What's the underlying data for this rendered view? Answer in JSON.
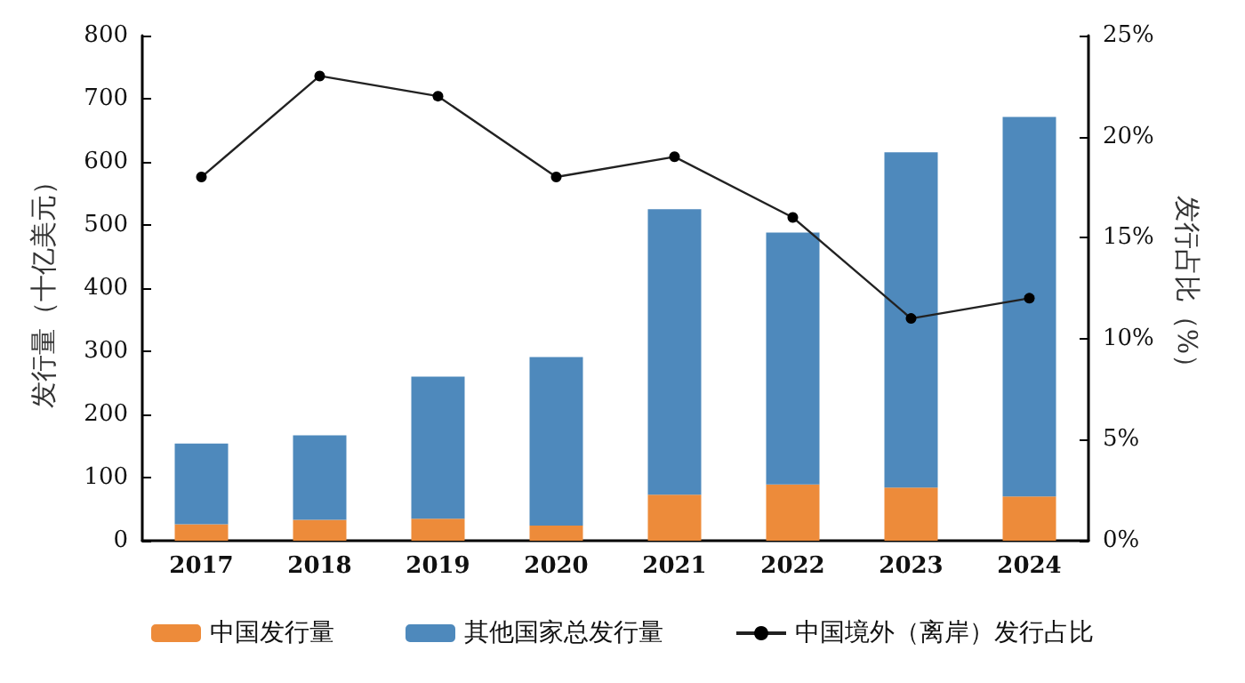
{
  "chart_data": {
    "type": "bar",
    "stacked": true,
    "categories": [
      "2017",
      "2018",
      "2019",
      "2020",
      "2021",
      "2022",
      "2023",
      "2024"
    ],
    "ylabel": "发行量（十亿美元）",
    "y2label": "发行占比（%）",
    "ylim": [
      0,
      800
    ],
    "yticks": [
      0,
      100,
      200,
      300,
      400,
      500,
      600,
      700,
      800
    ],
    "y2lim": [
      0,
      25
    ],
    "y2ticks": [
      {
        "value": 0,
        "label": "0%"
      },
      {
        "value": 5,
        "label": "5%"
      },
      {
        "value": 10,
        "label": "10%"
      },
      {
        "value": 15,
        "label": "15%"
      },
      {
        "value": 20,
        "label": "20%"
      },
      {
        "value": 25,
        "label": "25%"
      }
    ],
    "series": [
      {
        "name": "中国发行量",
        "color": "#ed8b3a",
        "values": [
          26,
          33,
          35,
          24,
          73,
          89,
          84,
          70
        ]
      },
      {
        "name": "其他国家总发行量",
        "color": "#4e89bc",
        "values": [
          128,
          134,
          225,
          267,
          452,
          399,
          531,
          601
        ]
      },
      {
        "name": "中国境外（离岸）发行占比",
        "type": "line",
        "axis": "y2",
        "color": "#222222",
        "marker": "circle",
        "values": [
          18,
          23,
          22,
          18,
          19,
          16,
          11,
          12
        ]
      }
    ],
    "legend": "bottom",
    "grid": false
  }
}
